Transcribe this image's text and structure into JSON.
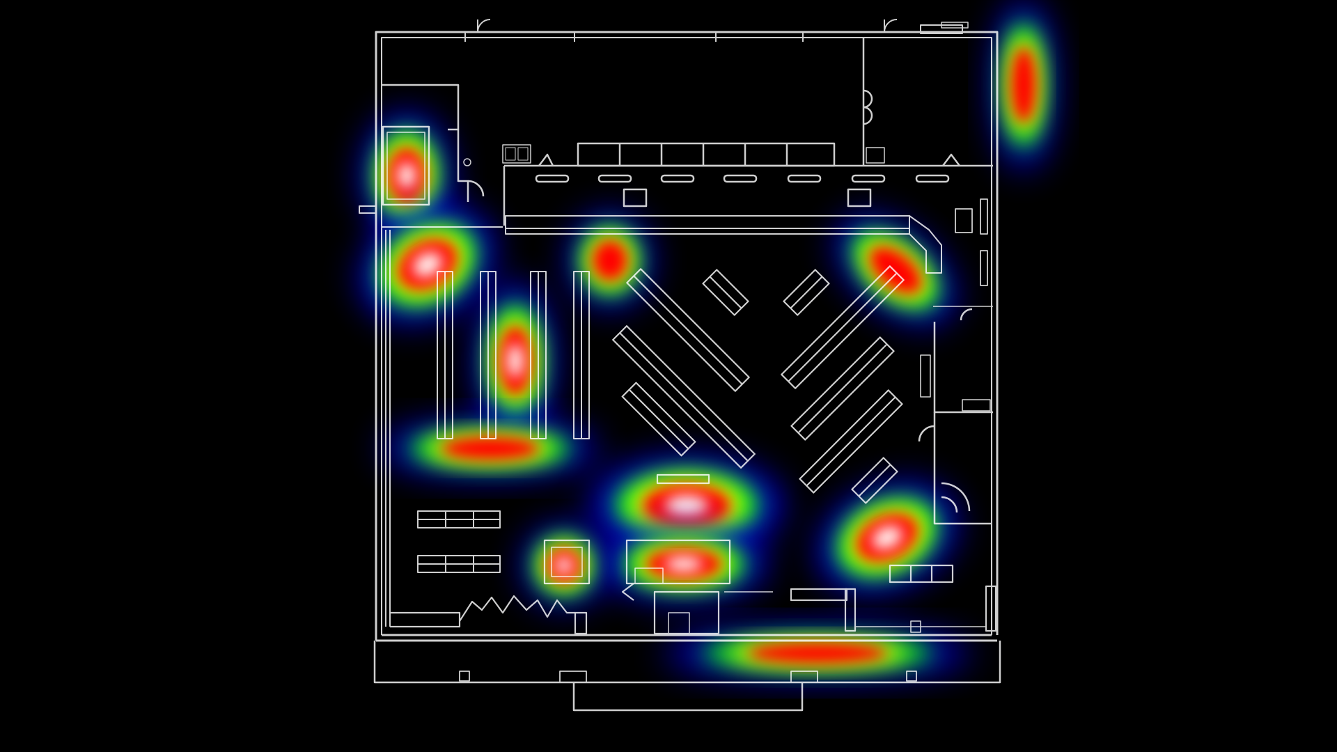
{
  "view": {
    "title": "",
    "background": "#000000"
  },
  "floorplan": {
    "stroke_color": "#cfcfcf",
    "background": "#000000",
    "aisle_unit_count": 4
  },
  "heatmap": {
    "palette": [
      "#0000ff",
      "#00ff00",
      "#ffff00",
      "#ff0000",
      "#ffffff"
    ],
    "hotspots": [
      {
        "id": "entrance-vestibule",
        "intensity": 0.95
      },
      {
        "id": "northeast-corner",
        "intensity": 0.75
      },
      {
        "id": "west-wall-display",
        "intensity": 0.92
      },
      {
        "id": "aisle-2-3",
        "intensity": 0.9
      },
      {
        "id": "aisle-endcaps-south",
        "intensity": 0.55
      },
      {
        "id": "rear-wall-center",
        "intensity": 0.65
      },
      {
        "id": "diagonal-right-top",
        "intensity": 0.8
      },
      {
        "id": "center-display-upper",
        "intensity": 0.95
      },
      {
        "id": "center-display-lower",
        "intensity": 0.9
      },
      {
        "id": "small-display-south",
        "intensity": 0.88
      },
      {
        "id": "southeast-display",
        "intensity": 0.9
      },
      {
        "id": "checkout-front",
        "intensity": 0.5
      }
    ]
  }
}
